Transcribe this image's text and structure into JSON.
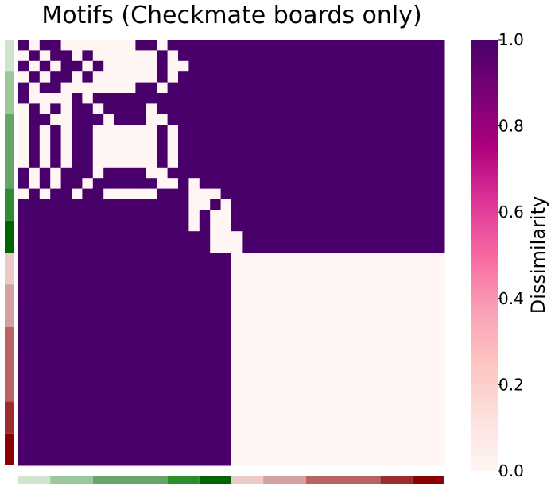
{
  "chart_data": {
    "type": "heatmap",
    "title": "Motifs (Checkmate boards only)",
    "n": 40,
    "values": [
      "0000000000000000000000000000000000000000",
      "0000000000000000000000000000000000000000",
      "0000000000000000000000000000000000000000",
      "0000000000000000000000000000000000000000",
      "0000000000000000000000000000000000000000",
      "0000000000000000000000000000000000000000",
      "0000000000000000000000000000000000000000",
      "0000000000000000000000000000000000000000",
      "0000000000000000000000000000000000000000",
      "0000000000000000000000000000000000000000",
      "0000000000000000000000000000000000000000",
      "0000000000000000000000000000000000000000",
      "0000000000000000000000000000000000000000",
      "0000000000000000000000000000000000000000",
      "0000000000000000000000000000000000000000",
      "0000000000000000000000000000000000000000",
      "0000000000000000000000000000000000000000",
      "0000000000000000000000000000000000000000",
      "0000000000000000000000000000000000000000",
      "0000000000000000000000000000000000000000",
      "1111111111111111111100000000000000000000",
      "1111111111111111111100000000000000000000",
      "1111111111111111111100000000000000000000",
      "1111111111111111111100000000000000000000",
      "1111111111111111111100000000000000000000",
      "1111111111111111111100000000000000000000",
      "1111111111111111111100000000000000000000",
      "1111111111111111111100000000000000000000",
      "1111111111111111111100000000000000000000",
      "1111111111111111111100000000000000000000",
      "1111111111111111111100000000000000000000",
      "1111111111111111111100000000000000000000",
      "1111111111111111111100000000000000000000",
      "1111111111111111111100000000000000000000",
      "1111111111111111111100000000000000000000",
      "1111111111111111111100000000000000000000",
      "1111111111111111111100000000000000000000",
      "1111111111111111111100000000000000000000",
      "1111111111111111111100000000000000000000",
      "1111111111111111111100000000000000000000"
    ],
    "top_rows": [
      "1011000000011011111111111111111111111111",
      "0101101000000101111111111111111111111111",
      "1010110100000100111111111111111111111111",
      "0101101000000101111111111111111111111111",
      "1011000000011011111111111111111111111111",
      "1000010111111111111111111111111111111111",
      "0101011011110111111111111111111111111111",
      "0110011101110011111111111111111111111111",
      "0101011000000101111111111111111111111111",
      "0101011000000101111111111111111111111111",
      "0101011000000101111111111111111111111111",
      "0101011000000101111111111111111111111111",
      "1010111011110011111111111111111111111111",
      "1010110111111001011111111111111111111111",
      "0101101100000111000111111111111111111111",
      "1111111111111111001011111111111111111111",
      "1111111111111111010011111111111111111111",
      "1111111111111111010011111111111111111111",
      "1111111111111111110001111111111111111111",
      "1111111111111111110001111111111111111111"
    ],
    "group_sizes": [
      3,
      4,
      7,
      3,
      3,
      3,
      4,
      7,
      3,
      3
    ],
    "group_colors": [
      "#cfe4cf",
      "#9ac89a",
      "#66a566",
      "#2e8b2e",
      "#006400",
      "#ecc9c9",
      "#d3a0a0",
      "#b86464",
      "#9c2d2d",
      "#8b0000"
    ],
    "colormap": [
      "#fff6f3",
      "#fde0dd",
      "#fcc5c0",
      "#fa9fb5",
      "#f768a1",
      "#dd3497",
      "#ae017e",
      "#7a0177",
      "#49006a"
    ],
    "vmin": 0.0,
    "vmax": 1.0,
    "colorbar_label": "Dissimilarity",
    "colorbar_ticks": [
      "0.0",
      "0.2",
      "0.4",
      "0.6",
      "0.8",
      "1.0"
    ]
  }
}
